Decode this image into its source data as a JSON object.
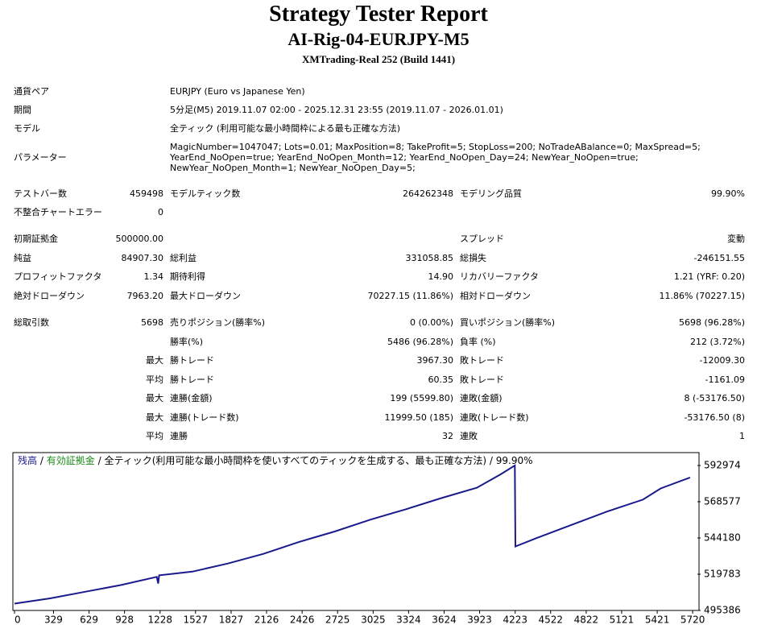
{
  "header": {
    "title": "Strategy Tester Report",
    "subtitle": "AI-Rig-04-EURJPY-M5",
    "build": "XMTrading-Real 252 (Build 1441)"
  },
  "info": [
    {
      "label": "通貨ペア",
      "value": "EURJPY (Euro vs Japanese Yen)"
    },
    {
      "label": "期間",
      "value": "5分足(M5) 2019.11.07 02:00 - 2025.12.31 23:55 (2019.11.07 - 2026.01.01)"
    },
    {
      "label": "モデル",
      "value": "全ティック (利用可能な最小時間枠による最も正確な方法)"
    },
    {
      "label": "パラメーター",
      "value": [
        "MagicNumber=1047047; Lots=0.01; MaxPosition=8; TakeProfit=5; StopLoss=200; NoTradeABalance=0; MaxSpread=5;",
        "YearEnd_NoOpen=true; YearEnd_NoOpen_Month=12; YearEnd_NoOpen_Day=24; NewYear_NoOpen=true;",
        "NewYear_NoOpen_Month=1; NewYear_NoOpen_Day=5;"
      ]
    }
  ],
  "stats": [
    [
      "テストバー数",
      "459498",
      "モデルティック数",
      "264262348",
      "モデリング品質",
      "99.90%"
    ],
    [
      "不整合チャートエラー",
      "0",
      null,
      null,
      null,
      null
    ],
    [
      "初期証拠金",
      "500000.00",
      null,
      null,
      "スプレッド",
      "変動"
    ],
    [
      "純益",
      "84907.30",
      "総利益",
      "331058.85",
      "総損失",
      "-246151.55"
    ],
    [
      "プロフィットファクタ",
      "1.34",
      "期待利得",
      "14.90",
      "リカバリーファクタ",
      "1.21 (YRF: 0.20)"
    ],
    [
      "絶対ドローダウン",
      "7963.20",
      "最大ドローダウン",
      "70227.15 (11.86%)",
      "相対ドローダウン",
      "11.86% (70227.15)"
    ],
    [
      "総取引数",
      "5698",
      "売りポジション(勝率%)",
      "0 (0.00%)",
      "買いポジション(勝率%)",
      "5698 (96.28%)"
    ],
    [
      null,
      null,
      "勝率(%)",
      "5486 (96.28%)",
      "負率 (%)",
      "212 (3.72%)"
    ],
    [
      null,
      "最大",
      "勝トレード",
      "3967.30",
      "敗トレード",
      "-12009.30"
    ],
    [
      null,
      "平均",
      "勝トレード",
      "60.35",
      "敗トレード",
      "-1161.09"
    ],
    [
      null,
      "最大",
      "連勝(金額)",
      "199 (5599.80)",
      "連敗(金額)",
      "8 (-53176.50)"
    ],
    [
      null,
      "最大",
      "連勝(トレード数)",
      "11999.50 (185)",
      "連敗(トレード数)",
      "-53176.50 (8)"
    ],
    [
      null,
      "平均",
      "連勝",
      "32",
      "連敗",
      "1"
    ]
  ],
  "chart_data": {
    "type": "line",
    "equity_label": "有効証拠金",
    "equity_color": "#1a8a1a",
    "separator": "/",
    "note": "全ティック(利用可能な最小時間枠を使いすべてのティックを生成する、最も正確な方法)",
    "quality": "99.90%",
    "series": [
      {
        "name": "残高",
        "color": "#1a1a8c",
        "x": [
          0,
          300,
          600,
          900,
          1200,
          1212,
          1220,
          1500,
          1800,
          2100,
          2400,
          2700,
          3000,
          3300,
          3600,
          3900,
          4100,
          4220,
          4225,
          4400,
          4700,
          5000,
          5300,
          5450,
          5698
        ],
        "values": [
          500000,
          503500,
          508000,
          512500,
          518000,
          513500,
          519000,
          521500,
          527000,
          533500,
          541500,
          548500,
          556500,
          563500,
          571000,
          578000,
          587000,
          593000,
          538500,
          544000,
          553000,
          562000,
          570000,
          577500,
          584907
        ]
      }
    ],
    "xlim": [
      0,
      5760
    ],
    "xticks": [
      0,
      329,
      629,
      928,
      1228,
      1527,
      1827,
      2126,
      2426,
      2725,
      3025,
      3324,
      3624,
      3923,
      4223,
      4522,
      4822,
      5121,
      5421,
      5720
    ],
    "ylim": [
      495386,
      592974
    ],
    "yticks": [
      495386,
      519783,
      544180,
      568577,
      592974
    ]
  }
}
